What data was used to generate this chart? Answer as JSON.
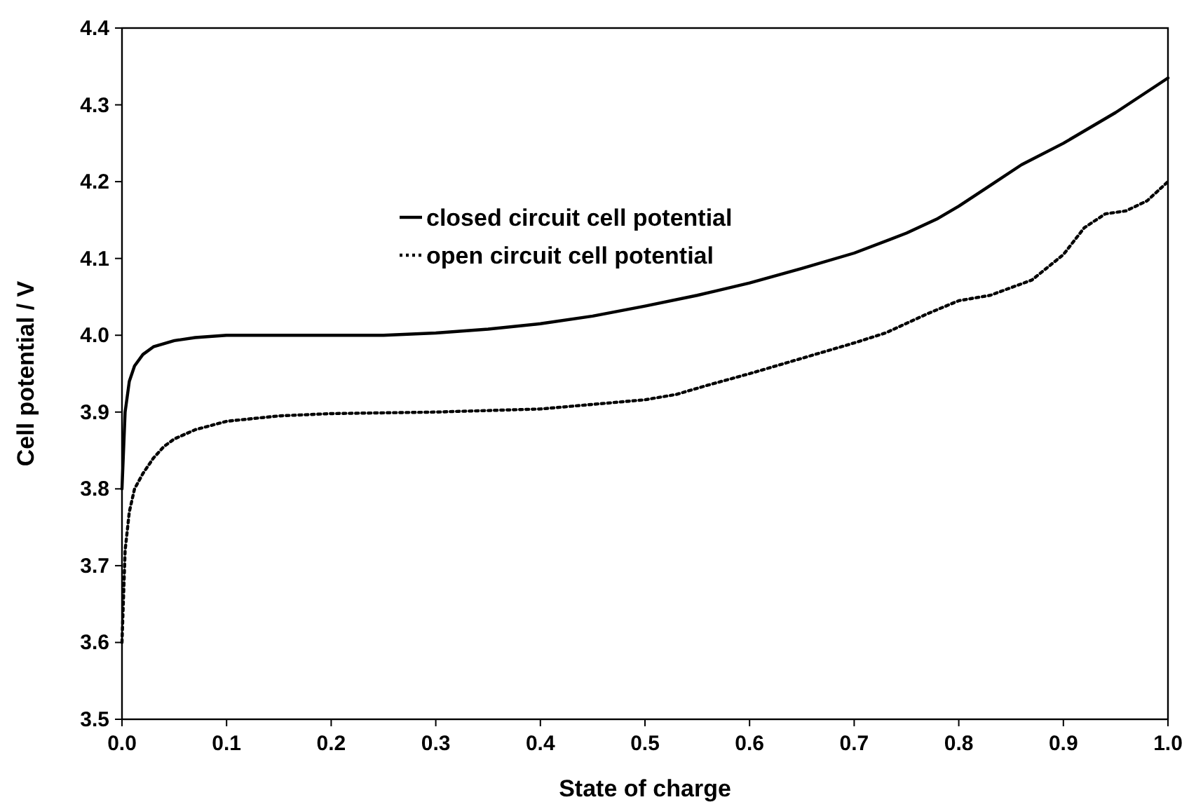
{
  "chart_data": {
    "type": "line",
    "xlabel": "State of charge",
    "ylabel": "Cell potential / V",
    "xlim": [
      0,
      1
    ],
    "xticks": [
      {
        "value": 0,
        "label": "0.0"
      },
      0.1,
      0.2,
      0.3,
      0.4,
      0.5,
      0.6,
      0.7,
      0.8,
      0.9,
      {
        "value": 1,
        "label": "1.0"
      }
    ],
    "ylim": [
      3.5,
      4.4
    ],
    "yticks": [
      3.5,
      3.6,
      3.7,
      3.8,
      3.9,
      {
        "value": 4,
        "label": "4.0"
      },
      4.1,
      4.2,
      4.3,
      4.4
    ],
    "grid": false,
    "legend": "top",
    "marker": "none",
    "series": [
      {
        "name": "closed circuit cell potential",
        "color": "#000000",
        "line_style": "solid",
        "x": [
          0,
          0.003,
          0.007,
          0.012,
          0.02,
          0.03,
          0.05,
          0.07,
          0.1,
          0.15,
          0.2,
          0.25,
          0.3,
          0.35,
          0.4,
          0.45,
          0.5,
          0.55,
          0.6,
          0.65,
          0.7,
          0.75,
          0.78,
          0.8,
          0.83,
          0.86,
          0.9,
          0.95,
          1.0
        ],
        "values": [
          3.8,
          3.9,
          3.94,
          3.96,
          3.975,
          3.985,
          3.993,
          3.997,
          4.0,
          4.0,
          4.0,
          4.0,
          4.003,
          4.008,
          4.015,
          4.025,
          4.038,
          4.052,
          4.068,
          4.087,
          4.107,
          4.133,
          4.152,
          4.168,
          4.195,
          4.222,
          4.25,
          4.29,
          4.335
        ]
      },
      {
        "name": "open circuit cell potential",
        "color": "#000000",
        "line_style": "dotted",
        "x": [
          0,
          0.003,
          0.007,
          0.012,
          0.02,
          0.03,
          0.04,
          0.05,
          0.07,
          0.1,
          0.15,
          0.2,
          0.3,
          0.4,
          0.45,
          0.5,
          0.53,
          0.56,
          0.6,
          0.65,
          0.7,
          0.73,
          0.77,
          0.8,
          0.83,
          0.87,
          0.9,
          0.92,
          0.94,
          0.96,
          0.98,
          1.0
        ],
        "values": [
          3.6,
          3.72,
          3.77,
          3.8,
          3.82,
          3.84,
          3.855,
          3.865,
          3.877,
          3.888,
          3.895,
          3.898,
          3.9,
          3.904,
          3.91,
          3.916,
          3.923,
          3.935,
          3.95,
          3.97,
          3.99,
          4.003,
          4.028,
          4.045,
          4.052,
          4.072,
          4.105,
          4.14,
          4.158,
          4.162,
          4.175,
          4.2
        ]
      }
    ]
  }
}
